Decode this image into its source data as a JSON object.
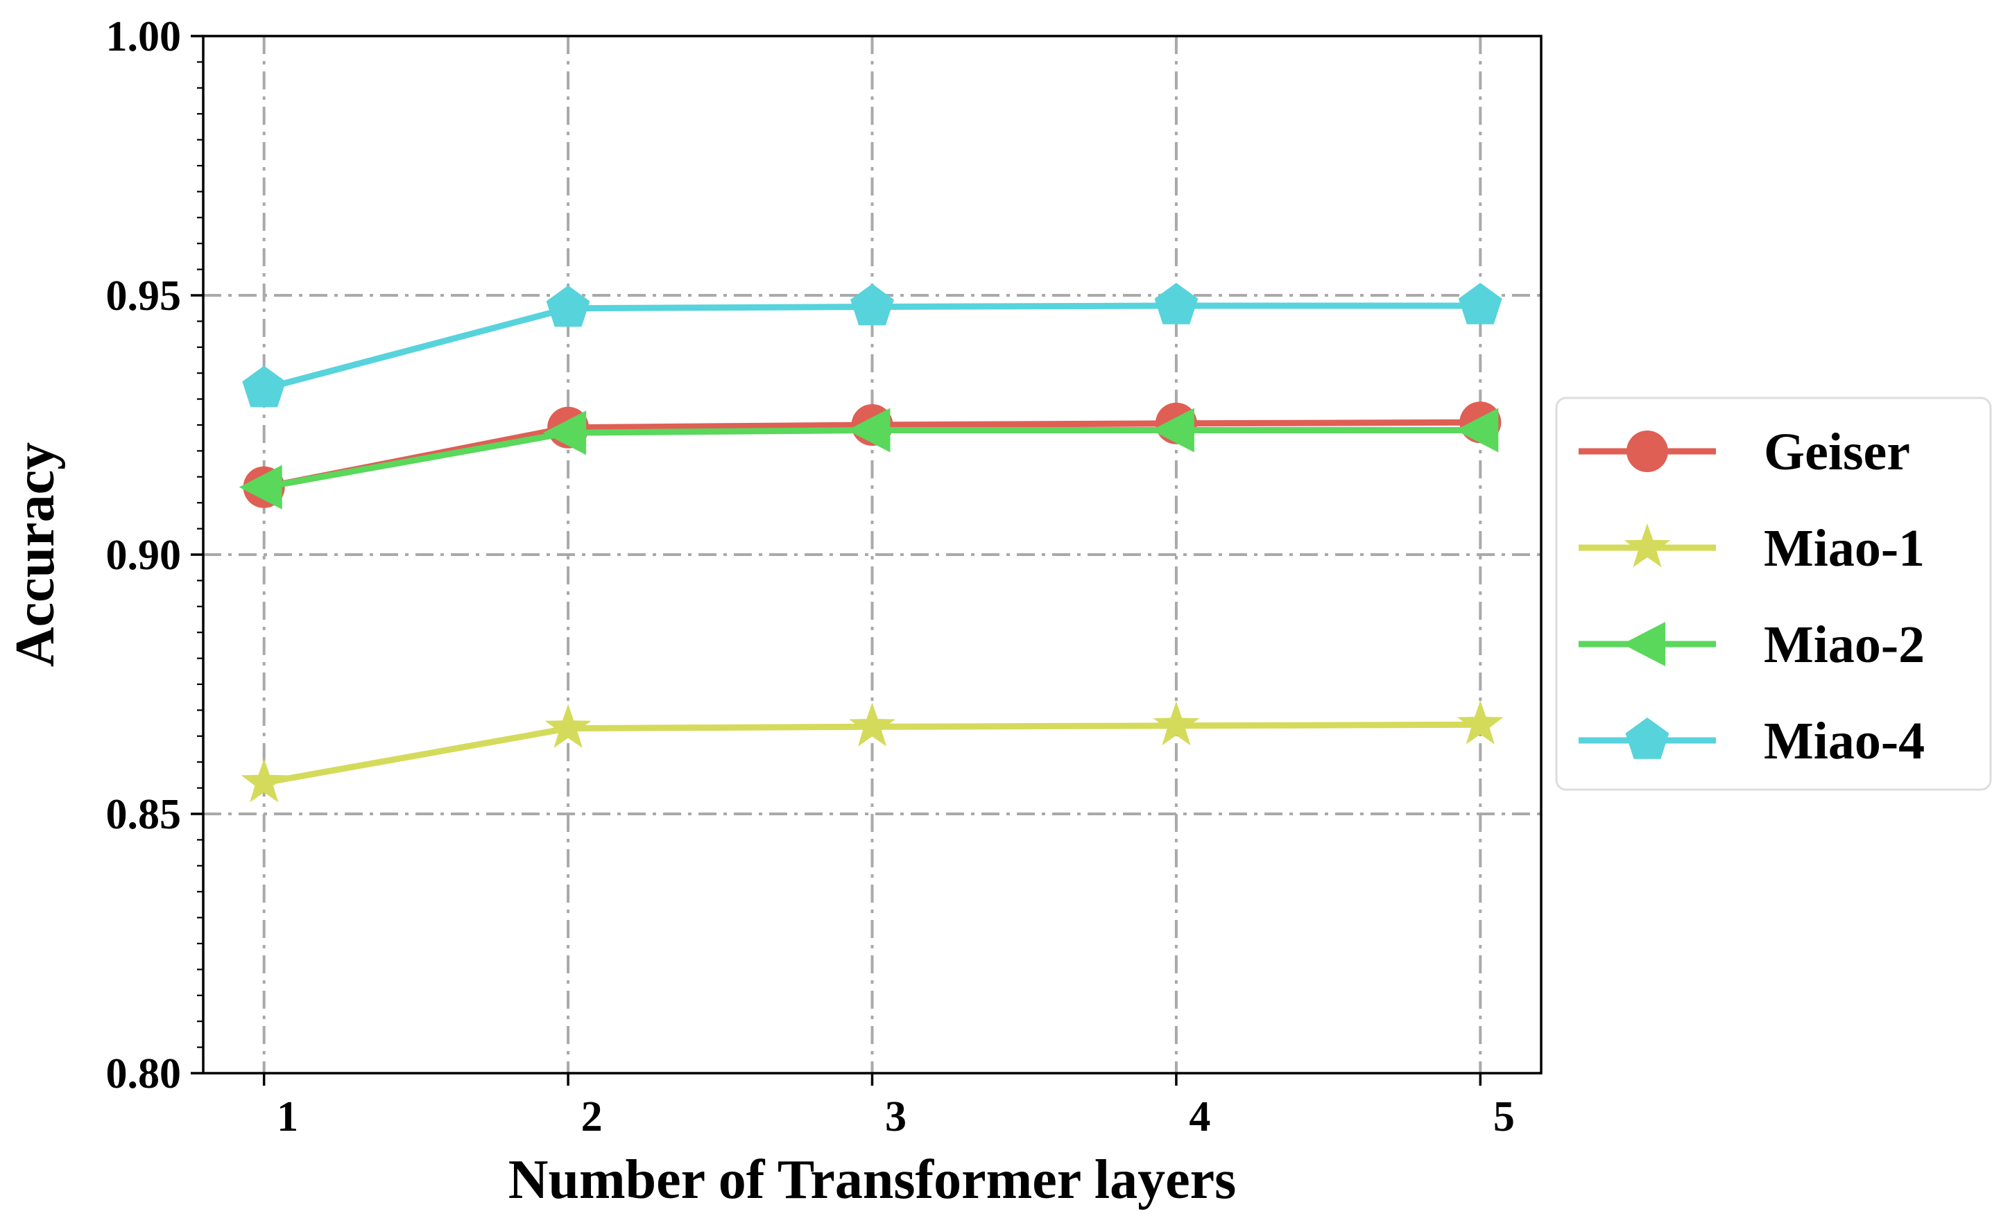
{
  "chart_data": {
    "type": "line",
    "title": "",
    "xlabel": "Number of Transformer layers",
    "ylabel": "Accuracy",
    "x": [
      1,
      2,
      3,
      4,
      5
    ],
    "x_tick_labels": [
      "1",
      "2",
      "3",
      "4",
      "5"
    ],
    "xlim": [
      0.8,
      5.2
    ],
    "ylim": [
      0.8,
      1.0
    ],
    "y_ticks": [
      0.8,
      0.85,
      0.9,
      0.95,
      1.0
    ],
    "y_tick_labels": [
      "0.80",
      "0.85",
      "0.90",
      "0.95",
      "1.00"
    ],
    "y_minor_step": 0.005,
    "grid": true,
    "legend_position": "outside-right",
    "series": [
      {
        "name": "Geiser",
        "marker": "circle",
        "color": "#df5f55",
        "values": [
          0.913,
          0.9245,
          0.925,
          0.9253,
          0.9255
        ]
      },
      {
        "name": "Miao-1",
        "marker": "star",
        "color": "#d4db5a",
        "values": [
          0.856,
          0.8665,
          0.8668,
          0.867,
          0.8672
        ]
      },
      {
        "name": "Miao-2",
        "marker": "triangle-left",
        "color": "#59d85b",
        "values": [
          0.913,
          0.9235,
          0.924,
          0.924,
          0.924
        ]
      },
      {
        "name": "Miao-4",
        "marker": "pentagon",
        "color": "#57d3dc",
        "values": [
          0.932,
          0.9475,
          0.9478,
          0.948,
          0.948
        ]
      }
    ]
  }
}
